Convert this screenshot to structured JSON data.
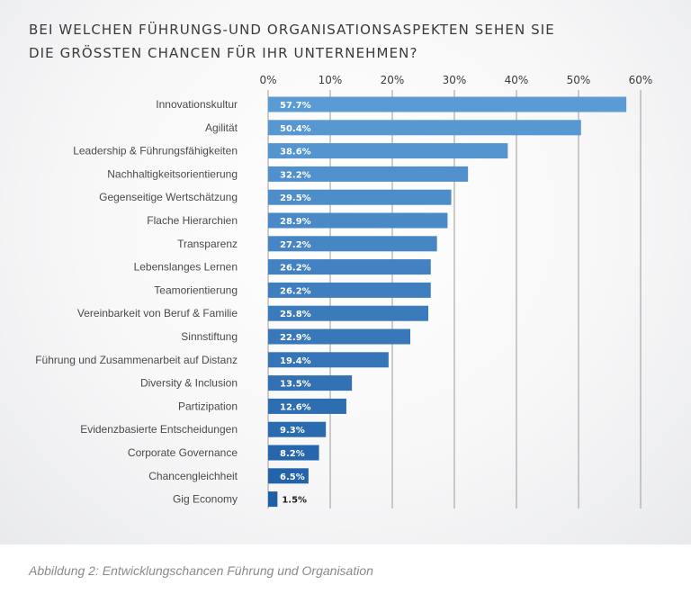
{
  "title_lines": [
    "BEI WELCHEN FÜHRUNGS-UND ORGANISATIONSASPEKTEN SEHEN SIE",
    "DIE GRÖSSTEN CHANCEN FÜR IHR UNTERNEHMEN?"
  ],
  "caption": "Abbildung 2: Entwicklungschancen Führung und Organisation",
  "colors": {
    "bar_light": "#5b9bd5",
    "bar_dark": "#1f5fa6",
    "grid": "#9b9b9b",
    "label": "#4a4a4a"
  },
  "chart_data": {
    "type": "bar",
    "orientation": "horizontal",
    "categories": [
      "Innovationskultur",
      "Agilität",
      "Leadership & Führungsfähigkeiten",
      "Nachhaltigkeitsorientierung",
      "Gegenseitige Wertschätzung",
      "Flache Hierarchien",
      "Transparenz",
      "Lebenslanges Lernen",
      "Teamorientierung",
      "Vereinbarkeit von Beruf & Familie",
      "Sinnstiftung",
      "Führung und Zusammenarbeit auf Distanz",
      "Diversity & Inclusion",
      "Partizipation",
      "Evidenzbasierte Entscheidungen",
      "Corporate Governance",
      "Chancengleichheit",
      "Gig Economy"
    ],
    "values": [
      57.7,
      50.4,
      38.6,
      32.2,
      29.5,
      28.9,
      27.2,
      26.2,
      26.2,
      25.8,
      22.9,
      19.4,
      13.5,
      12.6,
      9.3,
      8.2,
      6.5,
      1.5
    ],
    "value_labels": [
      "57.7%",
      "50.4%",
      "38.6%",
      "32.2%",
      "29.5%",
      "28.9%",
      "27.2%",
      "26.2%",
      "26.2%",
      "25.8%",
      "22.9%",
      "19.4%",
      "13.5%",
      "12.6%",
      "9.3%",
      "8.2%",
      "6.5%",
      "1.5%"
    ],
    "xlim": [
      0,
      60
    ],
    "xticks": [
      0,
      10,
      20,
      30,
      40,
      50,
      60
    ],
    "xtick_labels": [
      "0%",
      "10%",
      "20%",
      "30%",
      "40%",
      "50%",
      "60%"
    ],
    "axis_position": "top",
    "grid": true,
    "legend": "none"
  }
}
